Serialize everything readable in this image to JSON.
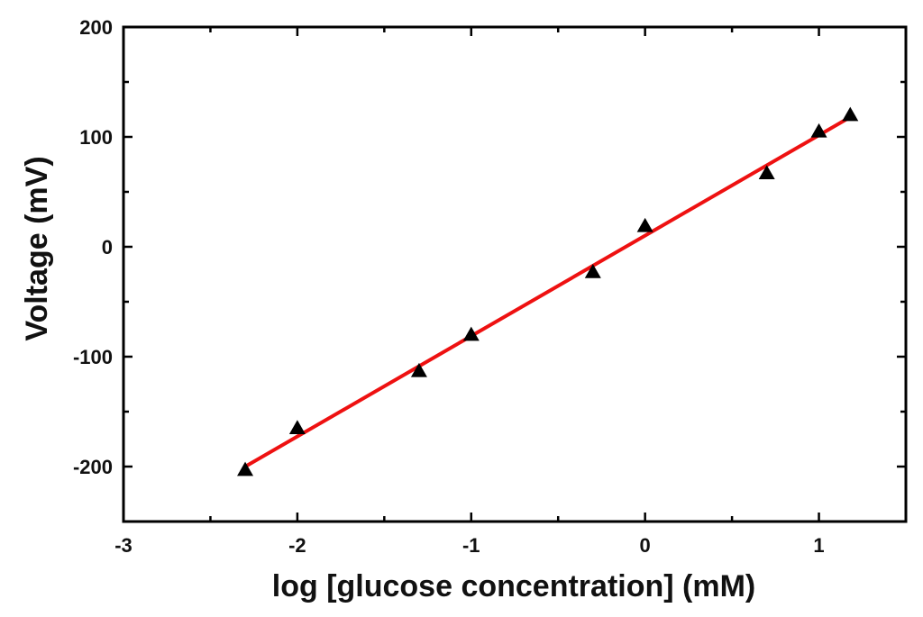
{
  "chart_data": {
    "type": "scatter",
    "title": "",
    "xlabel": "log [glucose concentration] (mM)",
    "ylabel": "Voltage (mV)",
    "xlim": [
      -3,
      1.5
    ],
    "ylim": [
      -250,
      200
    ],
    "x_ticks": [
      -3,
      -2,
      -1,
      0,
      1
    ],
    "y_ticks": [
      -200,
      -100,
      0,
      100,
      200
    ],
    "grid": false,
    "legend": "none",
    "series": [
      {
        "x": [
          -2.3,
          -2.0,
          -1.3,
          -1.0,
          -0.3,
          0.0,
          0.7,
          1.0,
          1.18
        ],
        "y": [
          -203,
          -165,
          -113,
          -80,
          -23,
          19,
          67,
          105,
          120
        ],
        "marker": "triangle",
        "color": "#000000"
      }
    ],
    "fit_line": {
      "x": [
        -2.3,
        1.18
      ],
      "y": [
        -200,
        118
      ],
      "color": "#ee1111"
    }
  }
}
